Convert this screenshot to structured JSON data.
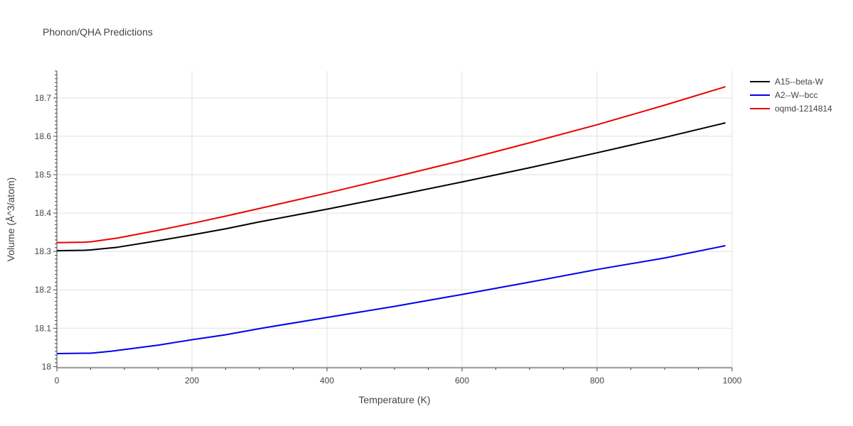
{
  "chart_data": {
    "type": "line",
    "title": "Phonon/QHA Predictions",
    "xlabel": "Temperature (K)",
    "ylabel": "Volume (Å^3/atom)",
    "xlim": [
      0,
      1000
    ],
    "ylim": [
      17.997,
      18.77
    ],
    "xticks": [
      0,
      200,
      400,
      600,
      800,
      1000
    ],
    "yticks": [
      18,
      18.1,
      18.2,
      18.3,
      18.4,
      18.5,
      18.6,
      18.7
    ],
    "grid": true,
    "legend_position": "top-right",
    "series": [
      {
        "name": "A15--beta-W",
        "color": "#000000",
        "x": [
          0,
          40,
          50,
          90,
          150,
          200,
          250,
          300,
          400,
          500,
          600,
          700,
          800,
          900,
          990
        ],
        "y": [
          18.302,
          18.303,
          18.304,
          18.311,
          18.328,
          18.343,
          18.359,
          18.377,
          18.41,
          18.445,
          18.481,
          18.518,
          18.557,
          18.597,
          18.635
        ]
      },
      {
        "name": "A2--W--bcc",
        "color": "#0000ee",
        "x": [
          0,
          40,
          50,
          80,
          150,
          200,
          250,
          300,
          400,
          500,
          600,
          700,
          800,
          900,
          990
        ],
        "y": [
          18.034,
          18.035,
          18.035,
          18.04,
          18.056,
          18.07,
          18.083,
          18.099,
          18.128,
          18.157,
          18.188,
          18.22,
          18.253,
          18.283,
          18.315
        ]
      },
      {
        "name": "oqmd-1214814",
        "color": "#ee0000",
        "x": [
          0,
          40,
          50,
          90,
          150,
          200,
          250,
          300,
          400,
          500,
          600,
          700,
          800,
          900,
          990
        ],
        "y": [
          18.323,
          18.324,
          18.325,
          18.335,
          18.355,
          18.373,
          18.392,
          18.412,
          18.452,
          18.494,
          18.537,
          18.583,
          18.63,
          18.681,
          18.729
        ]
      }
    ]
  }
}
